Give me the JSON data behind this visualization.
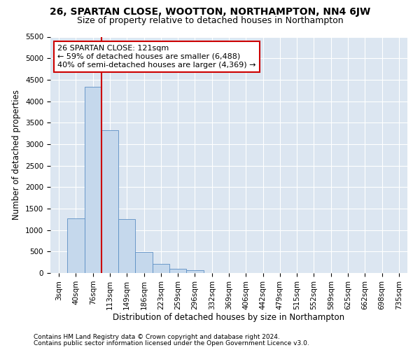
{
  "title1": "26, SPARTAN CLOSE, WOOTTON, NORTHAMPTON, NN4 6JW",
  "title2": "Size of property relative to detached houses in Northampton",
  "xlabel": "Distribution of detached houses by size in Northampton",
  "ylabel": "Number of detached properties",
  "footnote1": "Contains HM Land Registry data © Crown copyright and database right 2024.",
  "footnote2": "Contains public sector information licensed under the Open Government Licence v3.0.",
  "annotation_line1": "26 SPARTAN CLOSE: 121sqm",
  "annotation_line2": "← 59% of detached houses are smaller (6,488)",
  "annotation_line3": "40% of semi-detached houses are larger (4,369) →",
  "bar_labels": [
    "3sqm",
    "40sqm",
    "76sqm",
    "113sqm",
    "149sqm",
    "186sqm",
    "223sqm",
    "259sqm",
    "296sqm",
    "332sqm",
    "369sqm",
    "406sqm",
    "442sqm",
    "479sqm",
    "515sqm",
    "552sqm",
    "589sqm",
    "625sqm",
    "662sqm",
    "698sqm",
    "735sqm"
  ],
  "bar_values": [
    0,
    1270,
    4340,
    3320,
    1260,
    490,
    220,
    90,
    60,
    0,
    0,
    0,
    0,
    0,
    0,
    0,
    0,
    0,
    0,
    0,
    0
  ],
  "bar_color": "#c5d8ec",
  "bar_edgecolor": "#5b8ec4",
  "vline_color": "#cc0000",
  "ylim": [
    0,
    5500
  ],
  "yticks": [
    0,
    500,
    1000,
    1500,
    2000,
    2500,
    3000,
    3500,
    4000,
    4500,
    5000,
    5500
  ],
  "plot_bg_color": "#dce6f1",
  "grid_color": "#ffffff",
  "annotation_box_color": "#cc0000",
  "title1_fontsize": 10,
  "title2_fontsize": 9,
  "xlabel_fontsize": 8.5,
  "ylabel_fontsize": 8.5,
  "tick_fontsize": 7.5,
  "annotation_fontsize": 8,
  "footnote_fontsize": 6.5
}
